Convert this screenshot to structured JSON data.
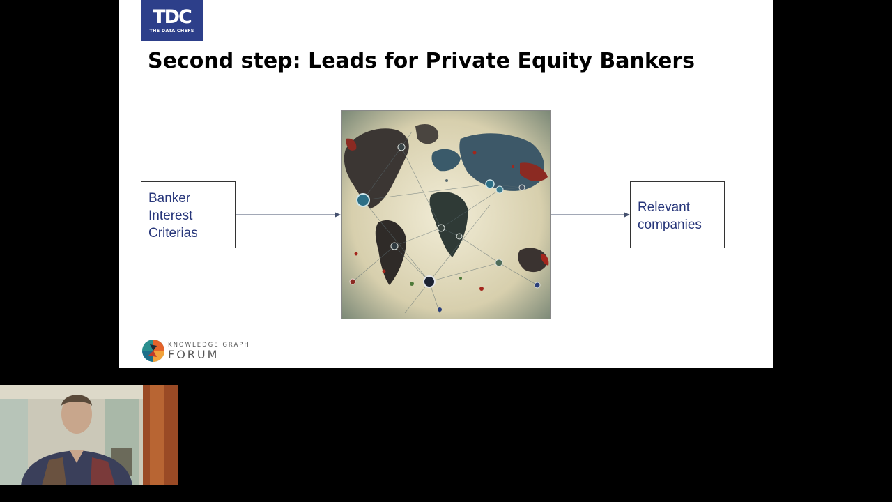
{
  "slide": {
    "logo_mark": "TDC",
    "logo_subtitle": "THE DATA CHEFS",
    "title": "Second step: Leads for Private Equity Bankers",
    "input_box": {
      "lines": [
        "Banker",
        "Interest",
        "Criterias"
      ]
    },
    "center_image": {
      "icon": "world-network-map-image"
    },
    "output_box": {
      "lines": [
        "Relevant",
        "companies"
      ]
    },
    "footer_logo": {
      "small_text": "KNOWLEDGE GRAPH",
      "big_text": "FORUM"
    }
  },
  "webcam": {
    "icon": "presenter-video-feed"
  },
  "colors": {
    "background": "#000000",
    "slide_bg": "#ffffff",
    "logo_blue": "#2d3f8a",
    "box_text": "#27367a",
    "arrow": "#44506e"
  }
}
